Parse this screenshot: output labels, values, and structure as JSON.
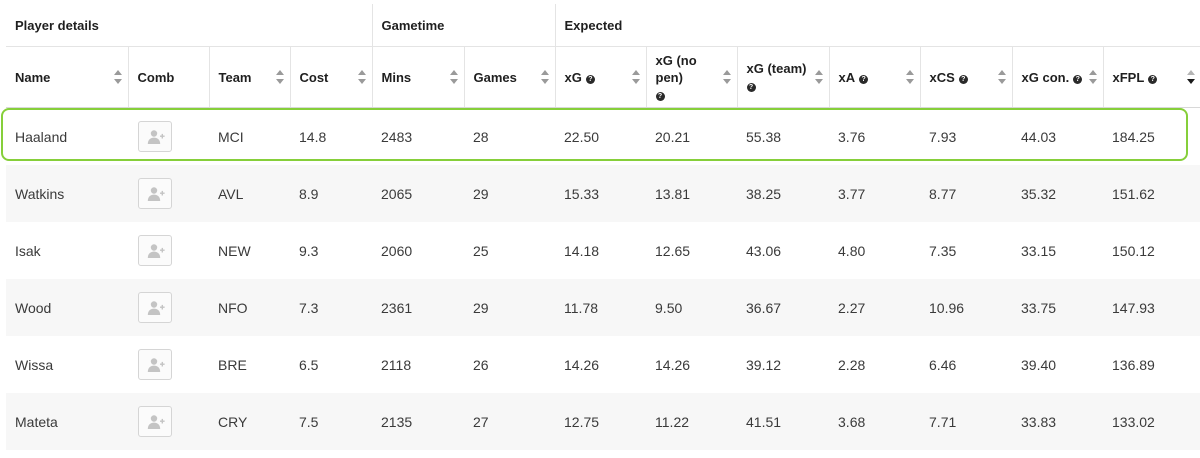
{
  "groups": [
    {
      "label": "Player details",
      "span": 4
    },
    {
      "label": "Gametime",
      "span": 2
    },
    {
      "label": "Expected",
      "span": 7
    }
  ],
  "columns": [
    {
      "label": "Name",
      "help": false,
      "sortable": true,
      "active": false
    },
    {
      "label": "Comb",
      "help": false,
      "sortable": false,
      "active": false
    },
    {
      "label": "Team",
      "help": false,
      "sortable": true,
      "active": false
    },
    {
      "label": "Cost",
      "help": false,
      "sortable": true,
      "active": false
    },
    {
      "label": "Mins",
      "help": false,
      "sortable": true,
      "active": false
    },
    {
      "label": "Games",
      "help": false,
      "sortable": true,
      "active": false
    },
    {
      "label": "xG",
      "help": true,
      "sortable": true,
      "active": false
    },
    {
      "label": "xG (no pen)",
      "help": true,
      "help_newline": true,
      "sortable": true,
      "active": false
    },
    {
      "label": "xG (team)",
      "help": true,
      "help_newline": true,
      "sortable": true,
      "active": false
    },
    {
      "label": "xA",
      "help": true,
      "sortable": true,
      "active": false
    },
    {
      "label": "xCS",
      "help": true,
      "sortable": true,
      "active": false
    },
    {
      "label": "xG con.",
      "help": true,
      "sortable": true,
      "active": false
    },
    {
      "label": "xFPL",
      "help": true,
      "sortable": true,
      "active": true
    }
  ],
  "help_glyph": "?",
  "icons": {
    "comb": "add-user-icon",
    "help": "question-circle-icon",
    "sort": "sort-arrows-icon"
  },
  "colors": {
    "highlight": "#86cf3a",
    "stripe": "#f7f7f7"
  },
  "highlighted_row": 0,
  "rows": [
    {
      "name": "Haaland",
      "team": "MCI",
      "cost": "14.8",
      "mins": "2483",
      "games": "28",
      "xg": "22.50",
      "xg_np": "20.21",
      "xg_team": "55.38",
      "xa": "3.76",
      "xcs": "7.93",
      "xg_con": "44.03",
      "xfpl": "184.25"
    },
    {
      "name": "Watkins",
      "team": "AVL",
      "cost": "8.9",
      "mins": "2065",
      "games": "29",
      "xg": "15.33",
      "xg_np": "13.81",
      "xg_team": "38.25",
      "xa": "3.77",
      "xcs": "8.77",
      "xg_con": "35.32",
      "xfpl": "151.62"
    },
    {
      "name": "Isak",
      "team": "NEW",
      "cost": "9.3",
      "mins": "2060",
      "games": "25",
      "xg": "14.18",
      "xg_np": "12.65",
      "xg_team": "43.06",
      "xa": "4.80",
      "xcs": "7.35",
      "xg_con": "33.15",
      "xfpl": "150.12"
    },
    {
      "name": "Wood",
      "team": "NFO",
      "cost": "7.3",
      "mins": "2361",
      "games": "29",
      "xg": "11.78",
      "xg_np": "9.50",
      "xg_team": "36.67",
      "xa": "2.27",
      "xcs": "10.96",
      "xg_con": "33.75",
      "xfpl": "147.93"
    },
    {
      "name": "Wissa",
      "team": "BRE",
      "cost": "6.5",
      "mins": "2118",
      "games": "26",
      "xg": "14.26",
      "xg_np": "14.26",
      "xg_team": "39.12",
      "xa": "2.28",
      "xcs": "6.46",
      "xg_con": "39.40",
      "xfpl": "136.89"
    },
    {
      "name": "Mateta",
      "team": "CRY",
      "cost": "7.5",
      "mins": "2135",
      "games": "27",
      "xg": "12.75",
      "xg_np": "11.22",
      "xg_team": "41.51",
      "xa": "3.68",
      "xcs": "7.71",
      "xg_con": "33.83",
      "xfpl": "133.02"
    }
  ]
}
